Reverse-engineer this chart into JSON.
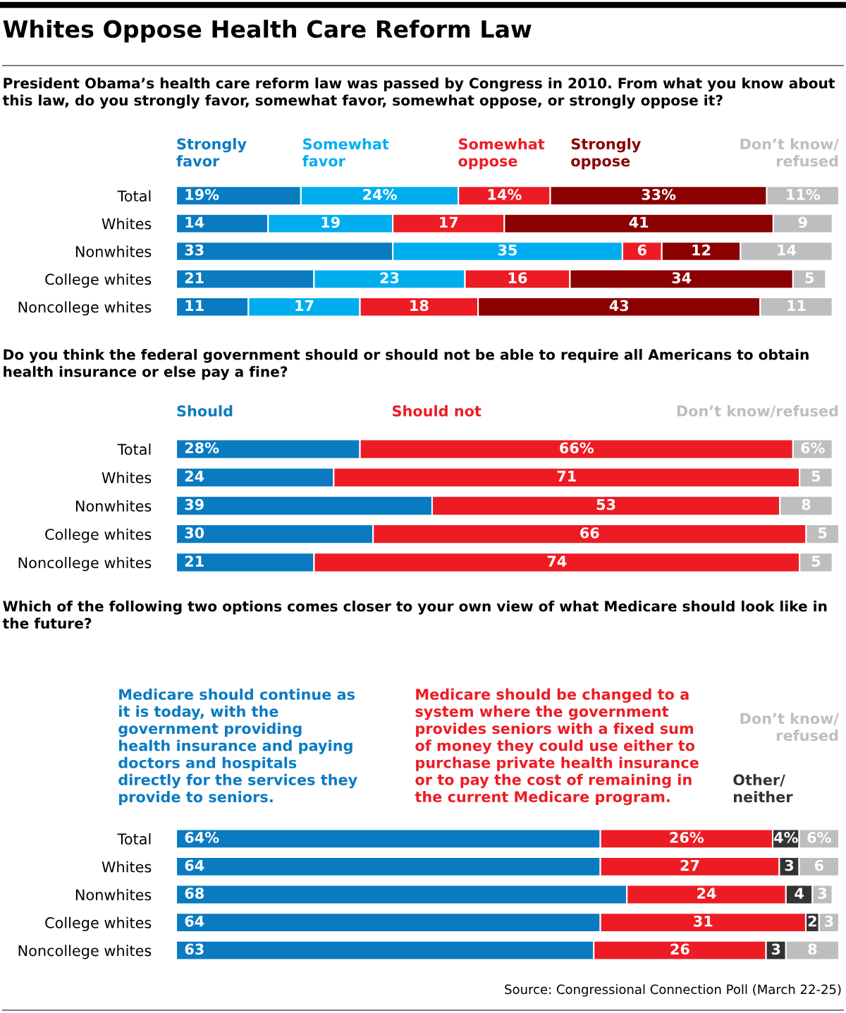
{
  "chart_data": [
    {
      "type": "bar",
      "orientation": "horizontal",
      "stacked": true,
      "tick_labels": "y",
      "title": "Whites Oppose Health Care Reform Law",
      "subtitle": "President Obama’s health care reform law was passed by Congress in 2010. From what you know about this law, do you strongly favor, somewhat favor, somewhat oppose, or strongly oppose it?",
      "categories": [
        "Total",
        "Whites",
        "Nonwhites",
        "College whites",
        "Noncollege whites"
      ],
      "series": [
        {
          "name": "Strongly\nfavor",
          "color": "#0a7bc1",
          "values": [
            19,
            14,
            33,
            21,
            11
          ],
          "value_labels": [
            "19%",
            "14",
            "33",
            "21",
            "11"
          ]
        },
        {
          "name": "Somewhat\nfavor",
          "color": "#00aeef",
          "values": [
            24,
            19,
            35,
            23,
            17
          ],
          "value_labels": [
            "24%",
            "19",
            "35",
            "23",
            "17"
          ]
        },
        {
          "name": "Somewhat\noppose",
          "color": "#ed1c24",
          "values": [
            14,
            17,
            6,
            16,
            18
          ],
          "value_labels": [
            "14%",
            "17",
            "6",
            "16",
            "18"
          ]
        },
        {
          "name": "Strongly\noppose",
          "color": "#8b0000",
          "values": [
            33,
            41,
            12,
            34,
            43
          ],
          "value_labels": [
            "33%",
            "41",
            "12",
            "34",
            "43"
          ]
        },
        {
          "name": "Don’t know/\nrefused",
          "color": "#bcbec0",
          "values": [
            11,
            9,
            14,
            5,
            11
          ],
          "value_labels": [
            "11%",
            "9",
            "14",
            "5",
            "11"
          ]
        }
      ]
    },
    {
      "type": "bar",
      "orientation": "horizontal",
      "stacked": true,
      "tick_labels": "y",
      "subtitle": "Do you think the federal government should or should not be able to require all Americans to obtain health insurance or else pay a fine?",
      "categories": [
        "Total",
        "Whites",
        "Nonwhites",
        "College whites",
        "Noncollege whites"
      ],
      "series": [
        {
          "name": "Should",
          "color": "#0a7bc1",
          "values": [
            28,
            24,
            39,
            30,
            21
          ],
          "value_labels": [
            "28%",
            "24",
            "39",
            "30",
            "21"
          ]
        },
        {
          "name": "Should not",
          "color": "#ed1c24",
          "values": [
            66,
            71,
            53,
            66,
            74
          ],
          "value_labels": [
            "66%",
            "71",
            "53",
            "66",
            "74"
          ]
        },
        {
          "name": "Don’t know/refused",
          "color": "#bcbec0",
          "values": [
            6,
            5,
            8,
            5,
            5
          ],
          "value_labels": [
            "6%",
            "5",
            "8",
            "5",
            "5"
          ]
        }
      ]
    },
    {
      "type": "bar",
      "orientation": "horizontal",
      "stacked": true,
      "tick_labels": "y",
      "subtitle": "Which of the following two options comes closer to your own view of what Medicare should look like in the future?",
      "annotations": [
        "Source: Congressional Connection Poll (March 22-25)"
      ],
      "categories": [
        "Total",
        "Whites",
        "Nonwhites",
        "College whites",
        "Noncollege whites"
      ],
      "series": [
        {
          "name": "Medicare should continue as\nit is today, with the\ngovernment providing\nhealth insurance and paying\ndoctors and hospitals\ndirectly for the services they\nprovide to seniors.",
          "color": "#0a7bc1",
          "values": [
            64,
            64,
            68,
            64,
            63
          ],
          "value_labels": [
            "64%",
            "64",
            "68",
            "64",
            "63"
          ]
        },
        {
          "name": "Medicare should be changed to a\nsystem where the government\nprovides seniors with a fixed sum\nof money they could use either to\npurchase private health insurance\nor to pay the cost of remaining in\nthe current Medicare program.",
          "color": "#ed1c24",
          "values": [
            26,
            27,
            24,
            31,
            26
          ],
          "value_labels": [
            "26%",
            "27",
            "24",
            "31",
            "26"
          ]
        },
        {
          "name": "Other/\nneither",
          "color": "#333333",
          "values": [
            4,
            3,
            4,
            2,
            3
          ],
          "value_labels": [
            "4%",
            "3",
            "4",
            "2",
            "3"
          ]
        },
        {
          "name": "Don’t know/\nrefused",
          "color": "#bcbec0",
          "values": [
            6,
            6,
            3,
            3,
            8
          ],
          "value_labels": [
            "6%",
            "6",
            "3",
            "3",
            "8"
          ]
        }
      ]
    }
  ]
}
